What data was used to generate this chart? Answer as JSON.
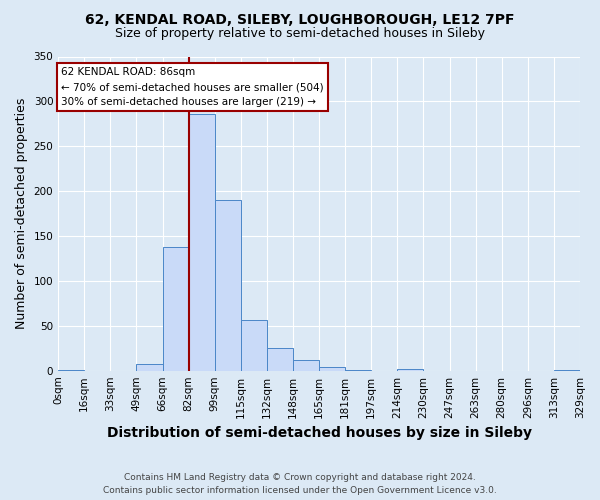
{
  "title": "62, KENDAL ROAD, SILEBY, LOUGHBOROUGH, LE12 7PF",
  "subtitle": "Size of property relative to semi-detached houses in Sileby",
  "xlabel": "Distribution of semi-detached houses by size in Sileby",
  "ylabel": "Number of semi-detached properties",
  "footer1": "Contains HM Land Registry data © Crown copyright and database right 2024.",
  "footer2": "Contains public sector information licensed under the Open Government Licence v3.0.",
  "annotation_line1": "62 KENDAL ROAD: 86sqm",
  "annotation_line2": "← 70% of semi-detached houses are smaller (504)",
  "annotation_line3": "30% of semi-detached houses are larger (219) →",
  "property_size_bin": 5,
  "bin_labels": [
    "0sqm",
    "16sqm",
    "33sqm",
    "49sqm",
    "66sqm",
    "82sqm",
    "99sqm",
    "115sqm",
    "132sqm",
    "148sqm",
    "165sqm",
    "181sqm",
    "197sqm",
    "214sqm",
    "230sqm",
    "247sqm",
    "263sqm",
    "280sqm",
    "296sqm",
    "313sqm",
    "329sqm"
  ],
  "counts": [
    1,
    0,
    0,
    7,
    138,
    286,
    190,
    56,
    25,
    12,
    4,
    1,
    0,
    2,
    0,
    0,
    0,
    0,
    0,
    1
  ],
  "bar_color": "#c9daf8",
  "bar_edge_color": "#4a86c8",
  "vline_color": "#990000",
  "annotation_box_color": "#ffffff",
  "annotation_box_edge": "#990000",
  "bg_color": "#dce9f5",
  "ylim": [
    0,
    350
  ],
  "yticks": [
    0,
    50,
    100,
    150,
    200,
    250,
    300,
    350
  ],
  "title_fontsize": 10,
  "subtitle_fontsize": 9,
  "axis_label_fontsize": 9,
  "tick_fontsize": 7.5,
  "footer_fontsize": 6.5
}
